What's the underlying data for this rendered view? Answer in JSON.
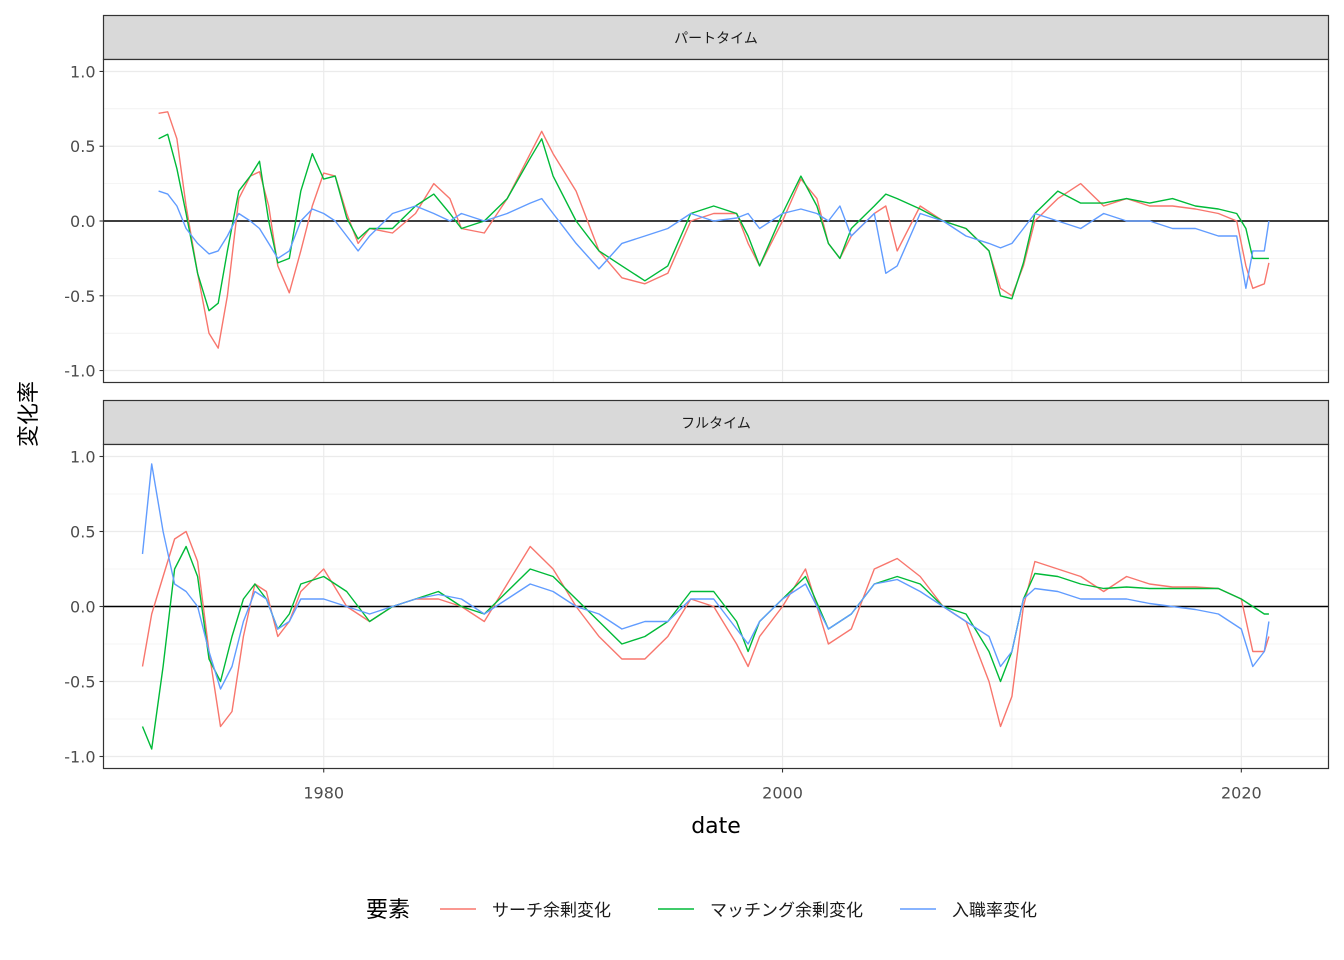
{
  "chart_data": {
    "type": "line",
    "xlabel": "date",
    "ylabel": "変化率",
    "xlim": [
      1970.4,
      2023.8
    ],
    "x_ticks": [
      1980,
      2000,
      2020
    ],
    "x_tick_labels": [
      "1980",
      "2000",
      "2020"
    ],
    "ylim": [
      -1.08,
      1.08
    ],
    "y_ticks": [
      1.0,
      0.5,
      0.0,
      -0.5,
      -1.0
    ],
    "y_tick_labels": [
      "1.0",
      "0.5",
      "0.0",
      "-0.5",
      "-1.0"
    ],
    "hline": 0,
    "grid": true,
    "legend": {
      "title": "要素",
      "position": "bottom",
      "entries": [
        "サーチ余剰変化",
        "マッチング余剰変化",
        "入職率変化"
      ],
      "colors": [
        "#F8766D",
        "#00BA38",
        "#619CFF"
      ]
    },
    "panels": [
      {
        "title": "パートタイム",
        "series": [
          {
            "name": "サーチ余剰変化",
            "color": "#F8766D",
            "x": [
              1972.8,
              1973.2,
              1973.6,
              1974.0,
              1974.5,
              1975.0,
              1975.4,
              1975.8,
              1976.3,
              1976.8,
              1977.2,
              1977.6,
              1978.0,
              1978.5,
              1979.0,
              1979.5,
              1980.0,
              1980.5,
              1981.0,
              1981.5,
              1982.0,
              1983.0,
              1984.0,
              1984.8,
              1985.5,
              1986.0,
              1987.0,
              1988.0,
              1989.0,
              1989.5,
              1990.0,
              1991.0,
              1992.0,
              1993.0,
              1994.0,
              1995.0,
              1996.0,
              1997.0,
              1998.0,
              1998.5,
              1999.0,
              2000.0,
              2000.8,
              2001.5,
              2002.0,
              2002.5,
              2003.0,
              2004.0,
              2004.5,
              2005.0,
              2006.0,
              2007.0,
              2008.0,
              2009.0,
              2009.5,
              2010.0,
              2010.5,
              2011.0,
              2012.0,
              2013.0,
              2014.0,
              2015.0,
              2016.0,
              2017.0,
              2018.0,
              2019.0,
              2019.8,
              2020.2,
              2020.5,
              2021.0,
              2021.2
            ],
            "y": [
              0.72,
              0.73,
              0.55,
              0.1,
              -0.35,
              -0.75,
              -0.85,
              -0.5,
              0.15,
              0.3,
              0.33,
              0.1,
              -0.3,
              -0.48,
              -0.2,
              0.1,
              0.32,
              0.3,
              0.05,
              -0.15,
              -0.05,
              -0.08,
              0.05,
              0.25,
              0.15,
              -0.05,
              -0.08,
              0.15,
              0.45,
              0.6,
              0.45,
              0.2,
              -0.2,
              -0.38,
              -0.42,
              -0.35,
              0.0,
              0.05,
              0.05,
              -0.15,
              -0.3,
              0.0,
              0.28,
              0.15,
              -0.15,
              -0.25,
              -0.1,
              0.05,
              0.1,
              -0.2,
              0.1,
              0.0,
              -0.05,
              -0.2,
              -0.45,
              -0.5,
              -0.3,
              0.0,
              0.15,
              0.25,
              0.1,
              0.15,
              0.1,
              0.1,
              0.08,
              0.05,
              0.0,
              -0.3,
              -0.45,
              -0.42,
              -0.28
            ]
          },
          {
            "name": "マッチング余剰変化",
            "color": "#00BA38",
            "x": [
              1972.8,
              1973.2,
              1973.6,
              1974.0,
              1974.5,
              1975.0,
              1975.4,
              1975.8,
              1976.3,
              1976.8,
              1977.2,
              1977.6,
              1978.0,
              1978.5,
              1979.0,
              1979.5,
              1980.0,
              1980.5,
              1981.0,
              1981.5,
              1982.0,
              1983.0,
              1984.0,
              1984.8,
              1985.5,
              1986.0,
              1987.0,
              1988.0,
              1989.0,
              1989.5,
              1990.0,
              1991.0,
              1992.0,
              1993.0,
              1994.0,
              1995.0,
              1996.0,
              1997.0,
              1998.0,
              1998.5,
              1999.0,
              2000.0,
              2000.8,
              2001.5,
              2002.0,
              2002.5,
              2003.0,
              2004.0,
              2004.5,
              2005.0,
              2006.0,
              2007.0,
              2008.0,
              2009.0,
              2009.5,
              2010.0,
              2010.5,
              2011.0,
              2012.0,
              2013.0,
              2014.0,
              2015.0,
              2016.0,
              2017.0,
              2018.0,
              2019.0,
              2019.8,
              2020.2,
              2020.5,
              2021.0,
              2021.2
            ],
            "y": [
              0.55,
              0.58,
              0.35,
              0.05,
              -0.35,
              -0.6,
              -0.55,
              -0.2,
              0.2,
              0.3,
              0.4,
              0.0,
              -0.28,
              -0.25,
              0.2,
              0.45,
              0.28,
              0.3,
              0.02,
              -0.12,
              -0.05,
              -0.05,
              0.1,
              0.18,
              0.05,
              -0.05,
              0.0,
              0.15,
              0.42,
              0.55,
              0.3,
              0.0,
              -0.2,
              -0.3,
              -0.4,
              -0.3,
              0.05,
              0.1,
              0.05,
              -0.1,
              -0.3,
              0.05,
              0.3,
              0.1,
              -0.15,
              -0.25,
              -0.05,
              0.1,
              0.18,
              0.15,
              0.08,
              0.0,
              -0.05,
              -0.2,
              -0.5,
              -0.52,
              -0.28,
              0.05,
              0.2,
              0.12,
              0.12,
              0.15,
              0.12,
              0.15,
              0.1,
              0.08,
              0.05,
              -0.05,
              -0.25,
              -0.25,
              -0.25
            ]
          },
          {
            "name": "入職率変化",
            "color": "#619CFF",
            "x": [
              1972.8,
              1973.2,
              1973.6,
              1974.0,
              1974.5,
              1975.0,
              1975.4,
              1975.8,
              1976.3,
              1976.8,
              1977.2,
              1977.6,
              1978.0,
              1978.5,
              1979.0,
              1979.5,
              1980.0,
              1980.5,
              1981.0,
              1981.5,
              1982.0,
              1983.0,
              1984.0,
              1984.8,
              1985.5,
              1986.0,
              1987.0,
              1988.0,
              1989.0,
              1989.5,
              1990.0,
              1991.0,
              1992.0,
              1993.0,
              1994.0,
              1995.0,
              1996.0,
              1997.0,
              1998.0,
              1998.5,
              1999.0,
              2000.0,
              2000.8,
              2001.5,
              2002.0,
              2002.5,
              2003.0,
              2004.0,
              2004.5,
              2005.0,
              2006.0,
              2007.0,
              2008.0,
              2009.0,
              2009.5,
              2010.0,
              2010.5,
              2011.0,
              2012.0,
              2013.0,
              2014.0,
              2015.0,
              2016.0,
              2017.0,
              2018.0,
              2019.0,
              2019.8,
              2020.2,
              2020.5,
              2021.0,
              2021.2
            ],
            "y": [
              0.2,
              0.18,
              0.1,
              -0.05,
              -0.15,
              -0.22,
              -0.2,
              -0.1,
              0.05,
              0.0,
              -0.05,
              -0.15,
              -0.25,
              -0.2,
              0.0,
              0.08,
              0.05,
              0.0,
              -0.1,
              -0.2,
              -0.1,
              0.05,
              0.1,
              0.05,
              0.0,
              0.05,
              0.0,
              0.05,
              0.12,
              0.15,
              0.05,
              -0.15,
              -0.32,
              -0.15,
              -0.1,
              -0.05,
              0.05,
              0.0,
              0.02,
              0.05,
              -0.05,
              0.05,
              0.08,
              0.05,
              0.0,
              0.1,
              -0.1,
              0.05,
              -0.35,
              -0.3,
              0.05,
              0.0,
              -0.1,
              -0.15,
              -0.18,
              -0.15,
              -0.05,
              0.05,
              0.0,
              -0.05,
              0.05,
              0.0,
              0.0,
              -0.05,
              -0.05,
              -0.1,
              -0.1,
              -0.45,
              -0.2,
              -0.2,
              0.0
            ]
          }
        ]
      },
      {
        "title": "フルタイム",
        "series": [
          {
            "name": "サーチ余剰変化",
            "color": "#F8766D",
            "x": [
              1972.1,
              1972.5,
              1973.0,
              1973.5,
              1974.0,
              1974.5,
              1975.0,
              1975.5,
              1976.0,
              1976.5,
              1977.0,
              1977.5,
              1978.0,
              1978.5,
              1979.0,
              1980.0,
              1981.0,
              1982.0,
              1983.0,
              1984.0,
              1985.0,
              1986.0,
              1987.0,
              1988.0,
              1989.0,
              1990.0,
              1991.0,
              1992.0,
              1993.0,
              1994.0,
              1995.0,
              1996.0,
              1997.0,
              1998.0,
              1998.5,
              1999.0,
              2000.0,
              2001.0,
              2002.0,
              2003.0,
              2004.0,
              2005.0,
              2006.0,
              2007.0,
              2008.0,
              2009.0,
              2009.5,
              2010.0,
              2010.5,
              2011.0,
              2012.0,
              2013.0,
              2014.0,
              2015.0,
              2016.0,
              2017.0,
              2018.0,
              2019.0,
              2020.0,
              2020.5,
              2021.0,
              2021.2
            ],
            "y": [
              -0.4,
              -0.05,
              0.2,
              0.45,
              0.5,
              0.3,
              -0.3,
              -0.8,
              -0.7,
              -0.2,
              0.15,
              0.1,
              -0.2,
              -0.1,
              0.1,
              0.25,
              0.0,
              -0.1,
              0.0,
              0.05,
              0.05,
              0.0,
              -0.1,
              0.15,
              0.4,
              0.25,
              0.0,
              -0.2,
              -0.35,
              -0.35,
              -0.2,
              0.05,
              0.0,
              -0.25,
              -0.4,
              -0.2,
              0.0,
              0.25,
              -0.25,
              -0.15,
              0.25,
              0.32,
              0.2,
              0.0,
              -0.1,
              -0.5,
              -0.8,
              -0.6,
              0.0,
              0.3,
              0.25,
              0.2,
              0.1,
              0.2,
              0.15,
              0.13,
              0.13,
              0.12,
              0.05,
              -0.3,
              -0.3,
              -0.2
            ]
          },
          {
            "name": "マッチング余剰変化",
            "color": "#00BA38",
            "x": [
              1972.1,
              1972.5,
              1973.0,
              1973.5,
              1974.0,
              1974.5,
              1975.0,
              1975.5,
              1976.0,
              1976.5,
              1977.0,
              1977.5,
              1978.0,
              1978.5,
              1979.0,
              1980.0,
              1981.0,
              1982.0,
              1983.0,
              1984.0,
              1985.0,
              1986.0,
              1987.0,
              1988.0,
              1989.0,
              1990.0,
              1991.0,
              1992.0,
              1993.0,
              1994.0,
              1995.0,
              1996.0,
              1997.0,
              1998.0,
              1998.5,
              1999.0,
              2000.0,
              2001.0,
              2002.0,
              2003.0,
              2004.0,
              2005.0,
              2006.0,
              2007.0,
              2008.0,
              2009.0,
              2009.5,
              2010.0,
              2010.5,
              2011.0,
              2012.0,
              2013.0,
              2014.0,
              2015.0,
              2016.0,
              2017.0,
              2018.0,
              2019.0,
              2020.0,
              2020.5,
              2021.0,
              2021.2
            ],
            "y": [
              -0.8,
              -0.95,
              -0.4,
              0.25,
              0.4,
              0.2,
              -0.35,
              -0.5,
              -0.2,
              0.05,
              0.15,
              0.05,
              -0.15,
              -0.05,
              0.15,
              0.2,
              0.1,
              -0.1,
              0.0,
              0.05,
              0.1,
              0.0,
              -0.05,
              0.1,
              0.25,
              0.2,
              0.05,
              -0.1,
              -0.25,
              -0.2,
              -0.1,
              0.1,
              0.1,
              -0.1,
              -0.3,
              -0.1,
              0.05,
              0.2,
              -0.15,
              -0.05,
              0.15,
              0.2,
              0.15,
              0.0,
              -0.05,
              -0.3,
              -0.5,
              -0.3,
              0.05,
              0.22,
              0.2,
              0.15,
              0.12,
              0.13,
              0.12,
              0.12,
              0.12,
              0.12,
              0.05,
              0.0,
              -0.05,
              -0.05
            ]
          },
          {
            "name": "入職率変化",
            "color": "#619CFF",
            "x": [
              1972.1,
              1972.5,
              1973.0,
              1973.5,
              1974.0,
              1974.5,
              1975.0,
              1975.5,
              1976.0,
              1976.5,
              1977.0,
              1977.5,
              1978.0,
              1978.5,
              1979.0,
              1980.0,
              1981.0,
              1982.0,
              1983.0,
              1984.0,
              1985.0,
              1986.0,
              1987.0,
              1988.0,
              1989.0,
              1990.0,
              1991.0,
              1992.0,
              1993.0,
              1994.0,
              1995.0,
              1996.0,
              1997.0,
              1998.0,
              1998.5,
              1999.0,
              2000.0,
              2001.0,
              2002.0,
              2003.0,
              2004.0,
              2005.0,
              2006.0,
              2007.0,
              2008.0,
              2009.0,
              2009.5,
              2010.0,
              2010.5,
              2011.0,
              2012.0,
              2013.0,
              2014.0,
              2015.0,
              2016.0,
              2017.0,
              2018.0,
              2019.0,
              2020.0,
              2020.5,
              2021.0,
              2021.2
            ],
            "y": [
              0.35,
              0.95,
              0.5,
              0.15,
              0.1,
              0.0,
              -0.3,
              -0.55,
              -0.4,
              -0.1,
              0.1,
              0.05,
              -0.15,
              -0.1,
              0.05,
              0.05,
              0.0,
              -0.05,
              0.0,
              0.05,
              0.08,
              0.05,
              -0.05,
              0.05,
              0.15,
              0.1,
              0.0,
              -0.05,
              -0.15,
              -0.1,
              -0.1,
              0.05,
              0.05,
              -0.15,
              -0.25,
              -0.1,
              0.05,
              0.15,
              -0.15,
              -0.05,
              0.15,
              0.18,
              0.1,
              0.0,
              -0.1,
              -0.2,
              -0.4,
              -0.3,
              0.05,
              0.12,
              0.1,
              0.05,
              0.05,
              0.05,
              0.02,
              0.0,
              -0.02,
              -0.05,
              -0.15,
              -0.4,
              -0.3,
              -0.1
            ]
          }
        ]
      }
    ]
  }
}
